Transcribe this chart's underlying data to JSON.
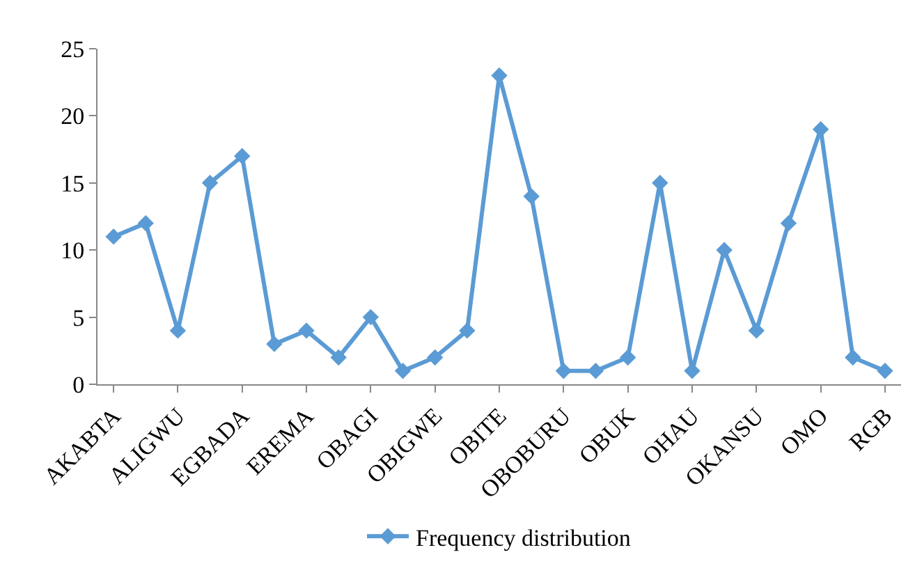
{
  "chart_data": {
    "type": "line",
    "categories": [
      "AKABTA",
      null,
      "ALIGWU",
      null,
      "EGBADA",
      null,
      "EREMA",
      null,
      "OBAGI",
      null,
      "OBIGWE",
      null,
      "OBITE",
      null,
      "OBOBURU",
      null,
      "OBUK",
      null,
      "OHAU",
      null,
      "OKANSU",
      null,
      "OMO",
      null,
      "RGB"
    ],
    "series": [
      {
        "name": "Frequency distribution",
        "color": "#5b9bd5",
        "values": [
          11,
          12,
          4,
          15,
          17,
          3,
          4,
          2,
          5,
          1,
          2,
          4,
          23,
          14,
          1,
          1,
          2,
          15,
          1,
          10,
          4,
          12,
          19,
          2,
          1
        ]
      }
    ],
    "ylim": [
      0,
      25
    ],
    "yticks": [
      0,
      5,
      10,
      15,
      20,
      25
    ],
    "grid": false,
    "legend": "bottom",
    "marker": "diamond",
    "line_style": "solid"
  }
}
